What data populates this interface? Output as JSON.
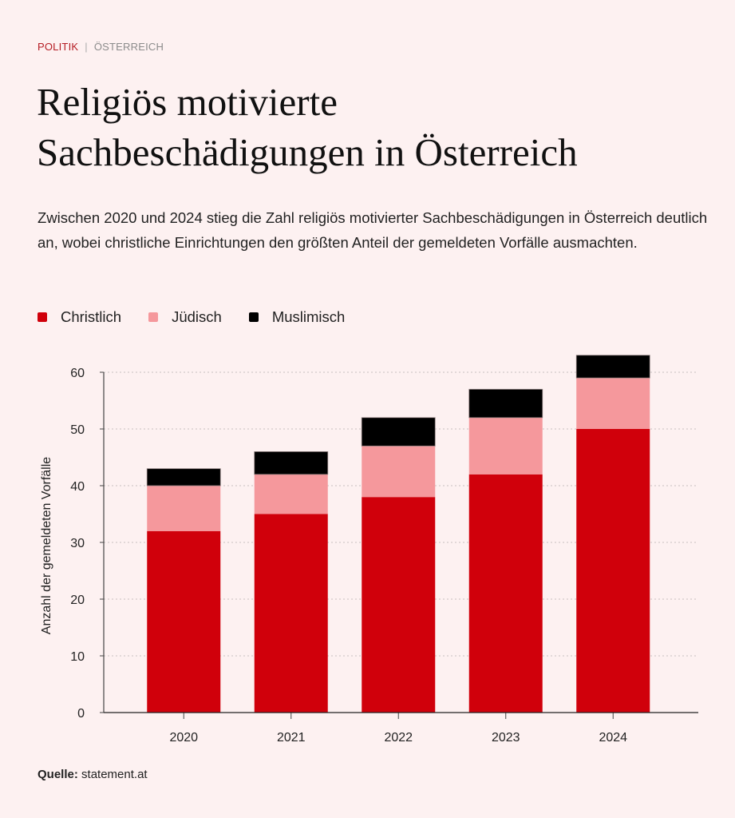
{
  "header": {
    "category": "POLITIK",
    "separator": "|",
    "subcategory": "ÖSTERREICH",
    "title_line1": "Religiös motivierte",
    "title_line2": "Sachbeschädigungen in Österreich",
    "subtitle": "Zwischen 2020 und 2024 stieg die Zahl religiös motivierter Sachbeschädigungen in Österreich deutlich an, wobei christliche Einrichtungen den größten Anteil der gemeldeten Vorfälle ausmachten."
  },
  "colors": {
    "background": "#fdf1f1",
    "christlich": "#d0000b",
    "juedisch": "#f5989c",
    "muslimisch": "#000000",
    "kicker": "#b51c23"
  },
  "chart_data": {
    "type": "bar",
    "stacked": true,
    "title": "Religiös motivierte Sachbeschädigungen in Österreich",
    "xlabel": "",
    "ylabel": "Anzahl der gemeldeten Vorfälle",
    "categories": [
      "2020",
      "2021",
      "2022",
      "2023",
      "2024"
    ],
    "series": [
      {
        "name": "Christlich",
        "color": "#d0000b",
        "values": [
          32,
          35,
          38,
          42,
          50
        ]
      },
      {
        "name": "Jüdisch",
        "color": "#f5989c",
        "values": [
          8,
          7,
          9,
          10,
          9
        ]
      },
      {
        "name": "Muslimisch",
        "color": "#000000",
        "values": [
          3,
          4,
          5,
          5,
          4
        ]
      }
    ],
    "ylim": [
      0,
      63
    ],
    "yticks": [
      0,
      10,
      20,
      30,
      40,
      50,
      60
    ],
    "grid": true,
    "legend_position": "top-left"
  },
  "legend": [
    {
      "label": "Christlich",
      "color": "#d0000b"
    },
    {
      "label": "Jüdisch",
      "color": "#f5989c"
    },
    {
      "label": "Muslimisch",
      "color": "#000000"
    }
  ],
  "footer": {
    "source_label": "Quelle:",
    "source_value": "statement.at"
  }
}
